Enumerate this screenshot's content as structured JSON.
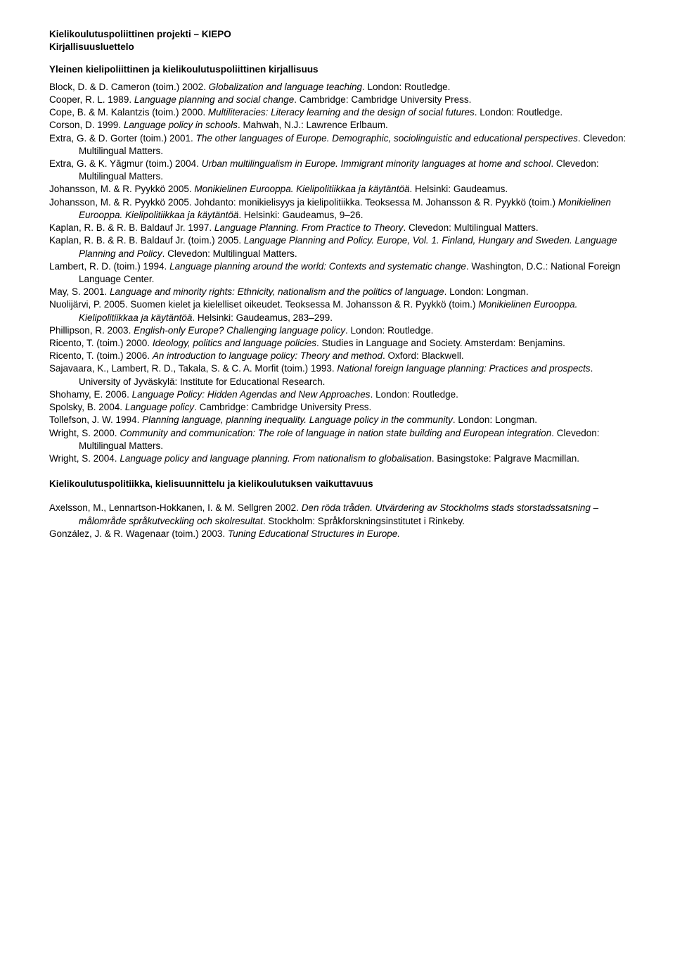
{
  "header": {
    "title": "Kielikoulutuspoliittinen projekti – KIEPO",
    "subtitle": "Kirjallisuusluettelo"
  },
  "section1": {
    "heading": "Yleinen kielipoliittinen ja kielikoulutuspoliittinen kirjallisuus",
    "entries": [
      {
        "pre": "Block, D. & D. Cameron (toim.) 2002. ",
        "it": "Globalization and language teaching",
        "post": ". London: Routledge."
      },
      {
        "pre": "Cooper, R. L. 1989. ",
        "it": "Language planning and social change",
        "post": ". Cambridge: Cambridge University Press."
      },
      {
        "pre": "Cope, B. & M. Kalantzis (toim.) 2000. ",
        "it": "Multiliteracies: Literacy learning and the design of social futures",
        "post": ". London: Routledge."
      },
      {
        "pre": "Corson, D. 1999. ",
        "it": "Language policy in schools",
        "post": ". Mahwah, N.J.: Lawrence Erlbaum."
      },
      {
        "pre": "Extra, G. & D. Gorter (toim.) 2001. ",
        "it": "The other languages of Europe. Demographic, sociolinguistic and educational perspectives",
        "post": ". Clevedon: Multilingual Matters."
      },
      {
        "pre": "Extra, G. & K. Yăgmur (toim.) 2004. ",
        "it": "Urban multilingualism in Europe. Immigrant minority languages at home and school",
        "post": ". Clevedon: Multilingual Matters."
      },
      {
        "pre": "Johansson, M. & R. Pyykkö 2005. ",
        "it": "Monikielinen Eurooppa. Kielipolitiikkaa ja käytäntöä",
        "post": ". Helsinki: Gaudeamus."
      },
      {
        "pre": "Johansson, M. & R. Pyykkö 2005. Johdanto: monikielisyys ja kielipolitiikka. Teoksessa M. Johansson & R. Pyykkö (toim.) ",
        "it": "Monikielinen Eurooppa. Kielipolitiikkaa ja käytäntöä",
        "post": ". Helsinki: Gaudeamus, 9–26."
      },
      {
        "pre": "Kaplan, R. B. & R. B. Baldauf Jr. 1997. ",
        "it": "Language Planning. From Practice to Theory",
        "post": ". Clevedon: Multilingual Matters."
      },
      {
        "pre": "Kaplan, R. B. & R. B. Baldauf Jr. (toim.) 2005. ",
        "it": "Language Planning and Policy. Europe, Vol. 1. Finland, Hungary and Sweden. Language Planning and Policy",
        "post": ". Clevedon: Multilingual Matters."
      },
      {
        "pre": "Lambert, R. D. (toim.) 1994. ",
        "it": "Language planning around the world: Contexts and systematic change",
        "post": ". Washington, D.C.: National Foreign Language Center."
      },
      {
        "pre": "May, S. 2001. ",
        "it": "Language and minority rights: Ethnicity, nationalism and the politics of language",
        "post": ". London: Longman."
      },
      {
        "pre": "Nuolijärvi, P. 2005. Suomen kielet ja kielelliset oikeudet. Teoksessa M. Johansson & R. Pyykkö (toim.) ",
        "it": "Monikielinen Eurooppa. Kielipolitiikkaa ja käytäntöä",
        "post": ". Helsinki: Gaudeamus, 283–299."
      },
      {
        "pre": "Phillipson, R. 2003. ",
        "it": "English-only Europe? Challenging language policy",
        "post": ". London: Routledge."
      },
      {
        "pre": "Ricento, T. (toim.) 2000. ",
        "it": "Ideology, politics and language policies",
        "post": ". Studies in Language and Society. Amsterdam: Benjamins."
      },
      {
        "pre": "Ricento, T. (toim.) 2006. ",
        "it": "An introduction to language policy: Theory and method",
        "post": ". Oxford: Blackwell."
      },
      {
        "pre": "Sajavaara, K., Lambert, R. D., Takala, S. & C. A. Morfit (toim.) 1993. ",
        "it": "National foreign language planning: Practices and prospects",
        "post": ". University of Jyväskylä: Institute for Educational Research."
      },
      {
        "pre": "Shohamy, E. 2006. ",
        "it": "Language Policy: Hidden Agendas and New Approaches",
        "post": ". London: Routledge."
      },
      {
        "pre": "Spolsky, B. 2004. ",
        "it": "Language policy",
        "post": ". Cambridge: Cambridge University Press."
      },
      {
        "pre": "Tollefson, J. W. 1994. ",
        "it": "Planning language, planning inequality. Language policy in the community",
        "post": ". London: Longman."
      },
      {
        "pre": "Wright, S. 2000. ",
        "it": "Community and communication: The role of language in nation state building and European integration",
        "post": ". Clevedon: Multilingual Matters."
      },
      {
        "pre": "Wright, S. 2004. ",
        "it": "Language policy and language planning. From nationalism to globalisation",
        "post": ". Basingstoke: Palgrave Macmillan."
      }
    ]
  },
  "section2": {
    "heading": "Kielikoulutuspolitiikka, kielisuunnittelu ja kielikoulutuksen vaikuttavuus",
    "entries": [
      {
        "pre": "Axelsson, M., Lennartson-Hokkanen, I. & M. Sellgren 2002. ",
        "it": "Den röda tråden. Utvärdering av Stockholms stads storstadssatsning – målområde språkutveckling och skolresultat",
        "post": ". Stockholm: Språkforskningsinstitutet i Rinkeby."
      },
      {
        "pre": "González, J. & R. Wagenaar (toim.) 2003. ",
        "it": "Tuning Educational Structures in Europe.",
        "post": ""
      }
    ]
  }
}
